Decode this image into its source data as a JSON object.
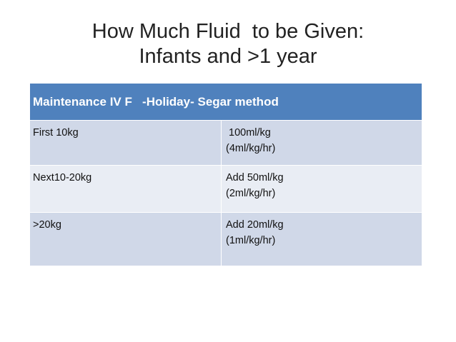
{
  "title": [
    "How Much Fluid  to be Given:",
    "Infants and >1 year"
  ],
  "table": {
    "header": "Maintenance IV F   -Holiday- Segar method",
    "rows": [
      [
        "First 10kg",
        [
          " 100ml/kg",
          "(4ml/kg/hr)"
        ]
      ],
      [
        "Next10-20kg",
        [
          "Add 50ml/kg",
          "(2ml/kg/hr)"
        ]
      ],
      [
        ">20kg",
        [
          "Add 20ml/kg",
          "(1ml/kg/hr)"
        ]
      ]
    ]
  }
}
